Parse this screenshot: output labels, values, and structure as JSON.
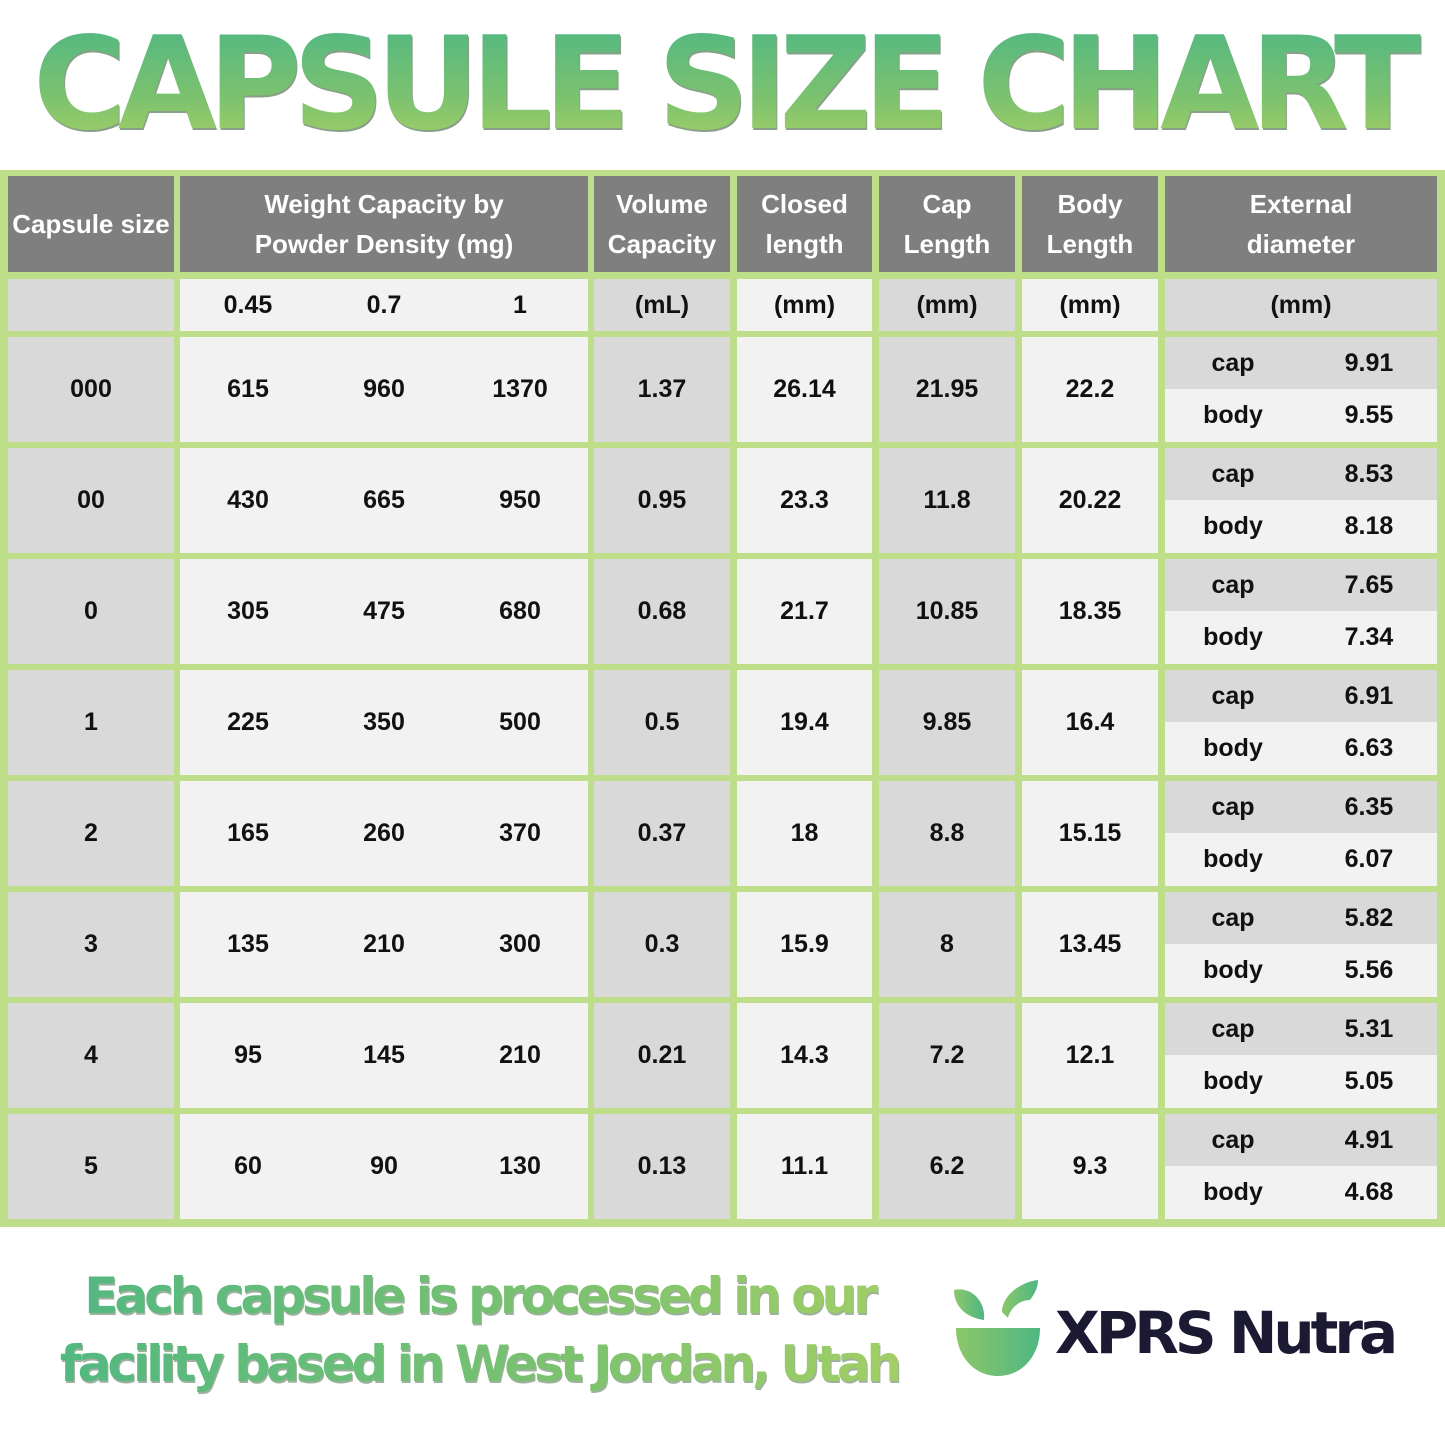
{
  "title": "CAPSULE SIZE CHART",
  "colors": {
    "title_gradient_top": "#4fb783",
    "title_gradient_bottom": "#a7d064",
    "grid_border": "#bfde8a",
    "header_bg": "#7f7f7f",
    "header_text": "#ffffff",
    "cell_dark": "#d9d9d9",
    "cell_light": "#f2f2f2",
    "brand_text": "#1c1a33"
  },
  "table": {
    "headers": {
      "size": "Capsule size",
      "weight_line1": "Weight Capacity by",
      "weight_line2": "Powder Density (mg)",
      "volume_line1": "Volume",
      "volume_line2": "Capacity",
      "closed_line1": "Closed",
      "closed_line2": "length",
      "cap_line1": "Cap",
      "cap_line2": "Length",
      "body_line1": "Body",
      "body_line2": "Length",
      "ext_line1": "External",
      "ext_line2": "diameter"
    },
    "units": {
      "size": "",
      "density_1": "0.45",
      "density_2": "0.7",
      "density_3": "1",
      "volume": "(mL)",
      "closed": "(mm)",
      "cap": "(mm)",
      "body": "(mm)",
      "ext": "(mm)"
    },
    "ext_labels": {
      "cap": "cap",
      "body": "body"
    },
    "rows": [
      {
        "size": "000",
        "w045": "615",
        "w07": "960",
        "w1": "1370",
        "volume": "1.37",
        "closed": "26.14",
        "cap": "21.95",
        "body": "22.2",
        "ext_cap": "9.91",
        "ext_body": "9.55"
      },
      {
        "size": "00",
        "w045": "430",
        "w07": "665",
        "w1": "950",
        "volume": "0.95",
        "closed": "23.3",
        "cap": "11.8",
        "body": "20.22",
        "ext_cap": "8.53",
        "ext_body": "8.18"
      },
      {
        "size": "0",
        "w045": "305",
        "w07": "475",
        "w1": "680",
        "volume": "0.68",
        "closed": "21.7",
        "cap": "10.85",
        "body": "18.35",
        "ext_cap": "7.65",
        "ext_body": "7.34"
      },
      {
        "size": "1",
        "w045": "225",
        "w07": "350",
        "w1": "500",
        "volume": "0.5",
        "closed": "19.4",
        "cap": "9.85",
        "body": "16.4",
        "ext_cap": "6.91",
        "ext_body": "6.63"
      },
      {
        "size": "2",
        "w045": "165",
        "w07": "260",
        "w1": "370",
        "volume": "0.37",
        "closed": "18",
        "cap": "8.8",
        "body": "15.15",
        "ext_cap": "6.35",
        "ext_body": "6.07"
      },
      {
        "size": "3",
        "w045": "135",
        "w07": "210",
        "w1": "300",
        "volume": "0.3",
        "closed": "15.9",
        "cap": "8",
        "body": "13.45",
        "ext_cap": "5.82",
        "ext_body": "5.56"
      },
      {
        "size": "4",
        "w045": "95",
        "w07": "145",
        "w1": "210",
        "volume": "0.21",
        "closed": "14.3",
        "cap": "7.2",
        "body": "12.1",
        "ext_cap": "5.31",
        "ext_body": "5.05"
      },
      {
        "size": "5",
        "w045": "60",
        "w07": "90",
        "w1": "130",
        "volume": "0.13",
        "closed": "11.1",
        "cap": "6.2",
        "body": "9.3",
        "ext_cap": "4.91",
        "ext_body": "4.68"
      }
    ]
  },
  "footer": {
    "line1": "Each capsule is processed in our",
    "line2": "facility based in West Jordan, Utah",
    "brand": "XPRS Nutra",
    "logo_icon": "leaf-bowl-icon"
  },
  "chart_data": {
    "type": "table",
    "title": "CAPSULE SIZE CHART",
    "columns": [
      "Capsule size",
      "Weight @0.45 (mg)",
      "Weight @0.7 (mg)",
      "Weight @1 (mg)",
      "Volume Capacity (mL)",
      "Closed length (mm)",
      "Cap Length (mm)",
      "Body Length (mm)",
      "External diameter cap (mm)",
      "External diameter body (mm)"
    ],
    "categories": [
      "000",
      "00",
      "0",
      "1",
      "2",
      "3",
      "4",
      "5"
    ],
    "series": [
      {
        "name": "Weight Capacity 0.45 density (mg)",
        "values": [
          615,
          430,
          305,
          225,
          165,
          135,
          95,
          60
        ]
      },
      {
        "name": "Weight Capacity 0.7 density (mg)",
        "values": [
          960,
          665,
          475,
          350,
          260,
          210,
          145,
          90
        ]
      },
      {
        "name": "Weight Capacity 1 density (mg)",
        "values": [
          1370,
          950,
          680,
          500,
          370,
          300,
          210,
          130
        ]
      },
      {
        "name": "Volume Capacity (mL)",
        "values": [
          1.37,
          0.95,
          0.68,
          0.5,
          0.37,
          0.3,
          0.21,
          0.13
        ]
      },
      {
        "name": "Closed length (mm)",
        "values": [
          26.14,
          23.3,
          21.7,
          19.4,
          18,
          15.9,
          14.3,
          11.1
        ]
      },
      {
        "name": "Cap Length (mm)",
        "values": [
          21.95,
          11.8,
          10.85,
          9.85,
          8.8,
          8,
          7.2,
          6.2
        ]
      },
      {
        "name": "Body Length (mm)",
        "values": [
          22.2,
          20.22,
          18.35,
          16.4,
          15.15,
          13.45,
          12.1,
          9.3
        ]
      },
      {
        "name": "External diameter cap (mm)",
        "values": [
          9.91,
          8.53,
          7.65,
          6.91,
          6.35,
          5.82,
          5.31,
          4.91
        ]
      },
      {
        "name": "External diameter body (mm)",
        "values": [
          9.55,
          8.18,
          7.34,
          6.63,
          6.07,
          5.56,
          5.05,
          4.68
        ]
      }
    ]
  }
}
